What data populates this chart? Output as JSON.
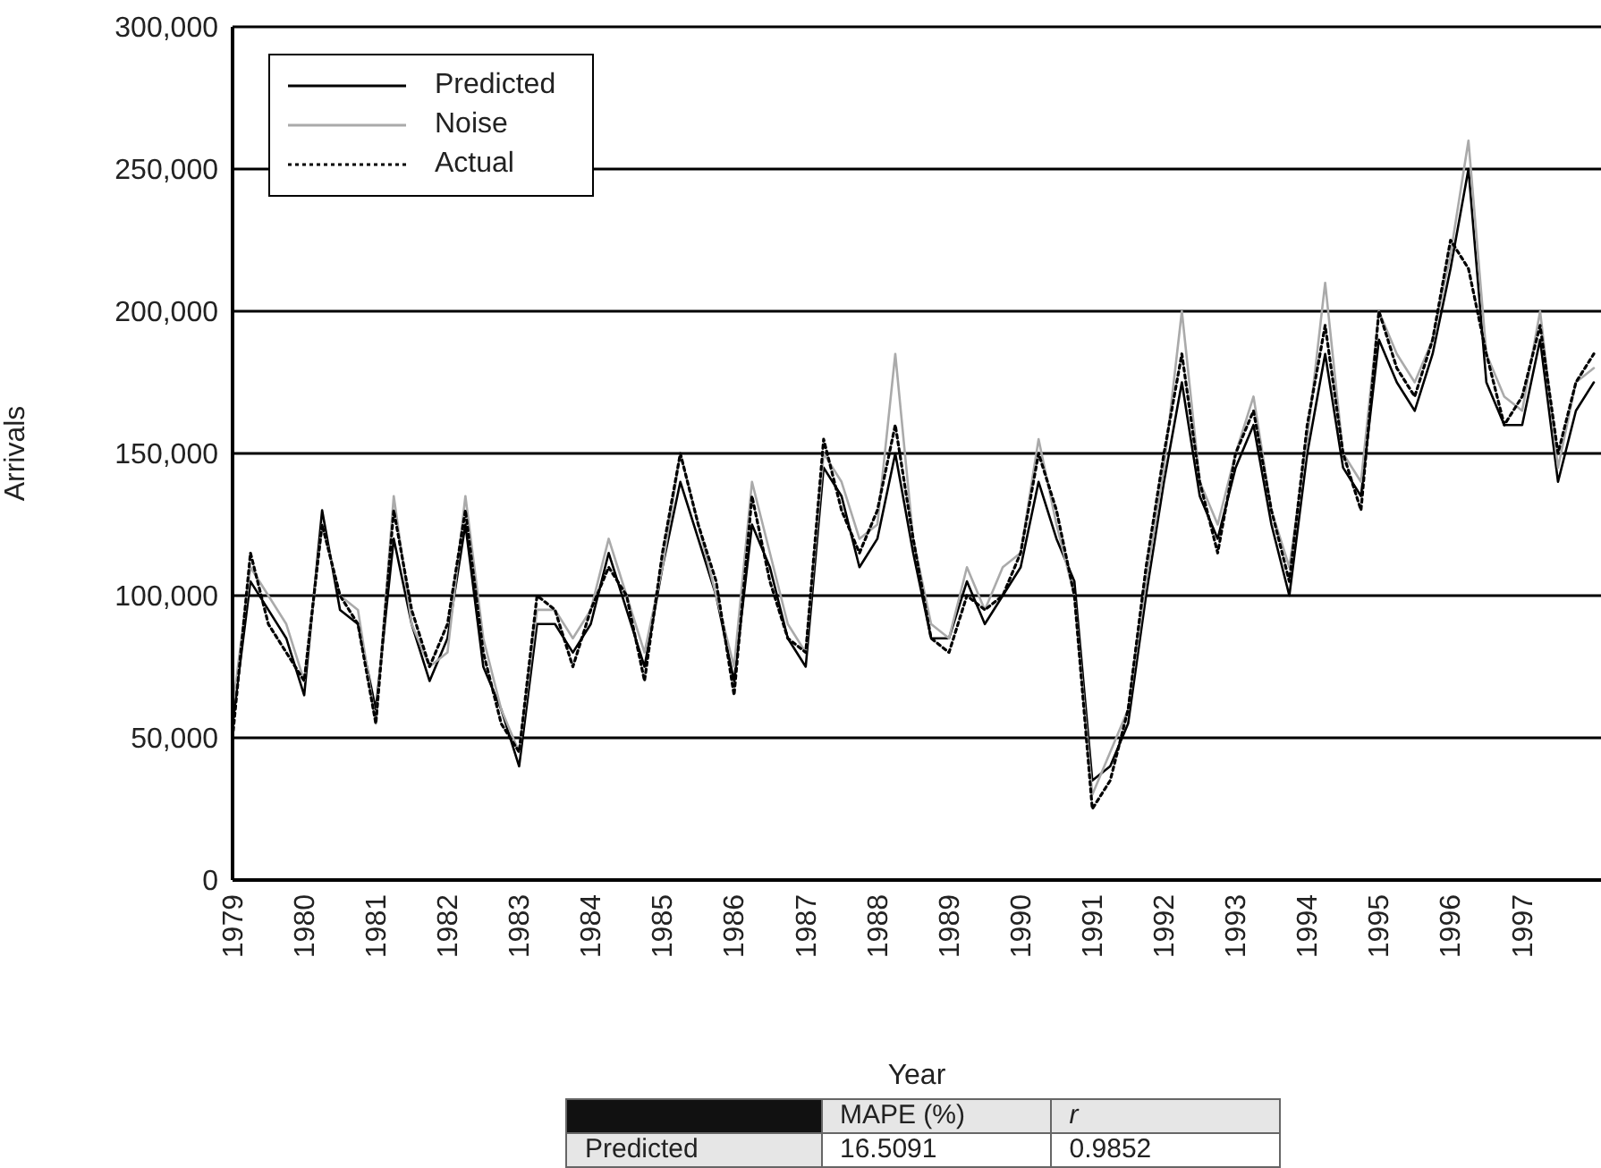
{
  "chart_data": {
    "type": "line",
    "xlabel": "Year",
    "ylabel": "Arrivals",
    "x": [
      1979,
      1979.25,
      1979.5,
      1979.75,
      1980,
      1980.25,
      1980.5,
      1980.75,
      1981,
      1981.25,
      1981.5,
      1981.75,
      1982,
      1982.25,
      1982.5,
      1982.75,
      1983,
      1983.25,
      1983.5,
      1983.75,
      1984,
      1984.25,
      1984.5,
      1984.75,
      1985,
      1985.25,
      1985.5,
      1985.75,
      1986,
      1986.25,
      1986.5,
      1986.75,
      1987,
      1987.25,
      1987.5,
      1987.75,
      1988,
      1988.25,
      1988.5,
      1988.75,
      1989,
      1989.25,
      1989.5,
      1989.75,
      1990,
      1990.25,
      1990.5,
      1990.75,
      1991,
      1991.25,
      1991.5,
      1991.75,
      1992,
      1992.25,
      1992.5,
      1992.75,
      1993,
      1993.25,
      1993.5,
      1993.75,
      1994,
      1994.25,
      1994.5,
      1994.75,
      1995,
      1995.25,
      1995.5,
      1995.75,
      1996,
      1996.25,
      1996.5,
      1996.75,
      1997,
      1997.25,
      1997.5,
      1997.75,
      1998
    ],
    "series": [
      {
        "name": "Predicted",
        "color": "#000000",
        "line_style": "solid",
        "values": [
          55000,
          105000,
          95000,
          85000,
          65000,
          130000,
          95000,
          90000,
          60000,
          120000,
          90000,
          70000,
          85000,
          125000,
          75000,
          60000,
          40000,
          90000,
          90000,
          80000,
          90000,
          115000,
          95000,
          75000,
          110000,
          140000,
          120000,
          100000,
          70000,
          125000,
          110000,
          85000,
          75000,
          145000,
          135000,
          110000,
          120000,
          150000,
          115000,
          85000,
          85000,
          105000,
          90000,
          100000,
          110000,
          140000,
          120000,
          105000,
          35000,
          40000,
          55000,
          100000,
          140000,
          175000,
          135000,
          120000,
          145000,
          160000,
          125000,
          100000,
          150000,
          185000,
          145000,
          135000,
          190000,
          175000,
          165000,
          185000,
          215000,
          250000,
          175000,
          160000,
          160000,
          190000,
          140000,
          165000,
          175000
        ]
      },
      {
        "name": "Noise",
        "color": "#aaaaaa",
        "line_style": "solid",
        "values": [
          60000,
          110000,
          100000,
          90000,
          70000,
          125000,
          100000,
          95000,
          55000,
          135000,
          90000,
          75000,
          80000,
          135000,
          85000,
          60000,
          45000,
          95000,
          95000,
          85000,
          95000,
          120000,
          100000,
          80000,
          110000,
          150000,
          125000,
          100000,
          75000,
          140000,
          115000,
          90000,
          80000,
          150000,
          140000,
          120000,
          125000,
          185000,
          120000,
          90000,
          85000,
          110000,
          95000,
          110000,
          115000,
          155000,
          125000,
          100000,
          30000,
          45000,
          60000,
          105000,
          145000,
          200000,
          140000,
          125000,
          150000,
          170000,
          130000,
          110000,
          155000,
          210000,
          150000,
          140000,
          200000,
          185000,
          175000,
          190000,
          220000,
          260000,
          185000,
          170000,
          165000,
          200000,
          145000,
          175000,
          180000
        ]
      },
      {
        "name": "Actual",
        "color": "#000000",
        "line_style": "dotted",
        "values": [
          50000,
          115000,
          90000,
          80000,
          70000,
          125000,
          100000,
          90000,
          55000,
          130000,
          95000,
          75000,
          90000,
          130000,
          80000,
          55000,
          45000,
          100000,
          95000,
          75000,
          95000,
          110000,
          100000,
          70000,
          115000,
          150000,
          125000,
          105000,
          65000,
          135000,
          105000,
          85000,
          80000,
          155000,
          130000,
          115000,
          130000,
          160000,
          120000,
          85000,
          80000,
          100000,
          95000,
          100000,
          115000,
          150000,
          130000,
          100000,
          25000,
          35000,
          60000,
          110000,
          150000,
          185000,
          140000,
          115000,
          150000,
          165000,
          130000,
          105000,
          160000,
          195000,
          150000,
          130000,
          200000,
          180000,
          170000,
          190000,
          225000,
          215000,
          185000,
          160000,
          170000,
          195000,
          150000,
          175000,
          185000
        ]
      }
    ],
    "xlim": [
      1979,
      1998.1
    ],
    "xticks": [
      1979,
      1980,
      1981,
      1982,
      1983,
      1984,
      1985,
      1986,
      1987,
      1988,
      1989,
      1990,
      1991,
      1992,
      1993,
      1994,
      1995,
      1996,
      1997
    ],
    "ylim": [
      0,
      300000
    ],
    "yticks": [
      {
        "value": 0,
        "label": "0"
      },
      {
        "value": 50000,
        "label": "50,000"
      },
      {
        "value": 100000,
        "label": "100,000"
      },
      {
        "value": 150000,
        "label": "150,000"
      },
      {
        "value": 200000,
        "label": "200,000"
      },
      {
        "value": 250000,
        "label": "250,000"
      },
      {
        "value": 300000,
        "label": "300,000"
      }
    ],
    "grid": "y",
    "legend": "top left",
    "marker": "none",
    "annotations": [
      "MAPE (%)",
      "r",
      "Predicted",
      "16.5091",
      "0.9852"
    ]
  }
}
